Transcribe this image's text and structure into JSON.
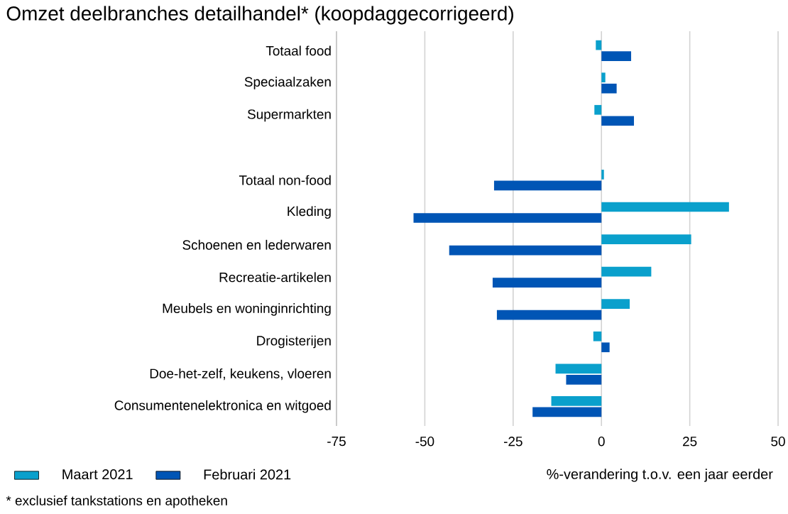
{
  "chart_data": {
    "type": "bar",
    "orientation": "horizontal",
    "title": "Omzet deelbranches detailhandel* (koopdaggecorrigeerd)",
    "xlabel": "%-verandering t.o.v. een jaar eerder",
    "categories": [
      "Totaal food",
      "Speciaalzaken",
      "Supermarkten",
      null,
      "Totaal non-food",
      "Kleding",
      "Schoenen en lederwaren",
      "Recreatie-artikelen",
      "Meubels en woninginrichting",
      "Drogisterijen",
      "Doe-het-zelf, keukens, vloeren",
      "Consumentenelektronica en witgoed"
    ],
    "series": [
      {
        "name": "Maart 2021",
        "color": "#0aa0cc",
        "values": [
          -1.6,
          1.1,
          -2.0,
          null,
          0.7,
          36.1,
          25.4,
          14.1,
          8.0,
          -2.3,
          -13.0,
          -14.2
        ]
      },
      {
        "name": "Februari 2021",
        "color": "#0055b5",
        "values": [
          8.4,
          4.3,
          9.2,
          null,
          -30.4,
          -53.2,
          -43.1,
          -30.8,
          -29.6,
          2.3,
          -10.0,
          -19.5
        ]
      }
    ],
    "xlim": [
      -75,
      50
    ],
    "xticks": [
      -75,
      -50,
      -25,
      0,
      25,
      50
    ],
    "grid": "x",
    "legend": "bottom left",
    "annotations": [
      "* exclusief tankstations en apotheken"
    ]
  }
}
